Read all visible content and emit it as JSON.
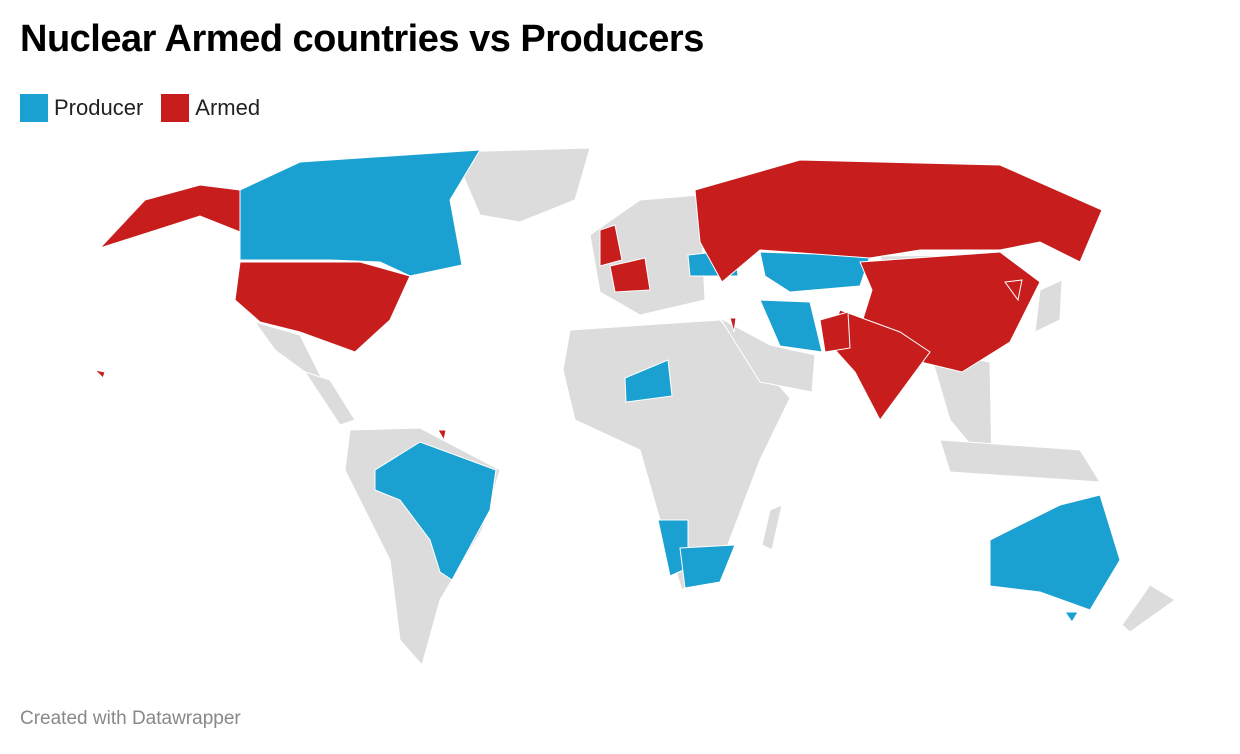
{
  "header": {
    "title": "Nuclear Armed countries vs Producers"
  },
  "legend": [
    {
      "label": "Producer",
      "color": "#1aa1d1"
    },
    {
      "label": "Armed",
      "color": "#c71e1d"
    }
  ],
  "footer": "Created with Datawrapper"
}
